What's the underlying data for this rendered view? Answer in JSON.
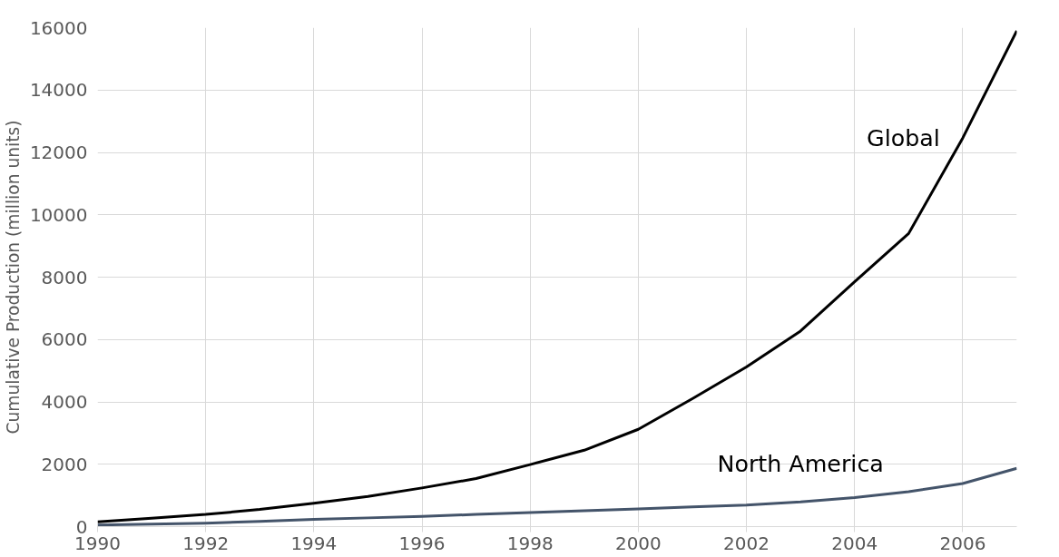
{
  "chart_data": {
    "type": "line",
    "ylabel": "Cumulative Production (million units)",
    "x": [
      1990,
      1991,
      1992,
      1993,
      1994,
      1995,
      1996,
      1997,
      1998,
      1999,
      2000,
      2001,
      2002,
      2003,
      2004,
      2005,
      2006,
      2007
    ],
    "series": [
      {
        "name": "Global",
        "color": "#000000",
        "values": [
          150,
          270,
          390,
          550,
          750,
          970,
          1240,
          1540,
          1990,
          2450,
          3120,
          4100,
          5120,
          6270,
          7850,
          9400,
          12460,
          15900
        ]
      },
      {
        "name": "North America",
        "color": "#44546a",
        "values": [
          50,
          80,
          110,
          170,
          230,
          280,
          330,
          390,
          450,
          510,
          570,
          630,
          690,
          790,
          930,
          1120,
          1380,
          1870
        ]
      }
    ],
    "xlim": [
      1990,
      2007
    ],
    "xticks": [
      1990,
      1992,
      1994,
      1996,
      1998,
      2000,
      2002,
      2004,
      2006
    ],
    "ylim": [
      0,
      16000
    ],
    "yticks": [
      0,
      2000,
      4000,
      6000,
      8000,
      10000,
      12000,
      14000,
      16000
    ],
    "grid": true,
    "legend": false,
    "marker": "none",
    "line_style": "solid"
  }
}
